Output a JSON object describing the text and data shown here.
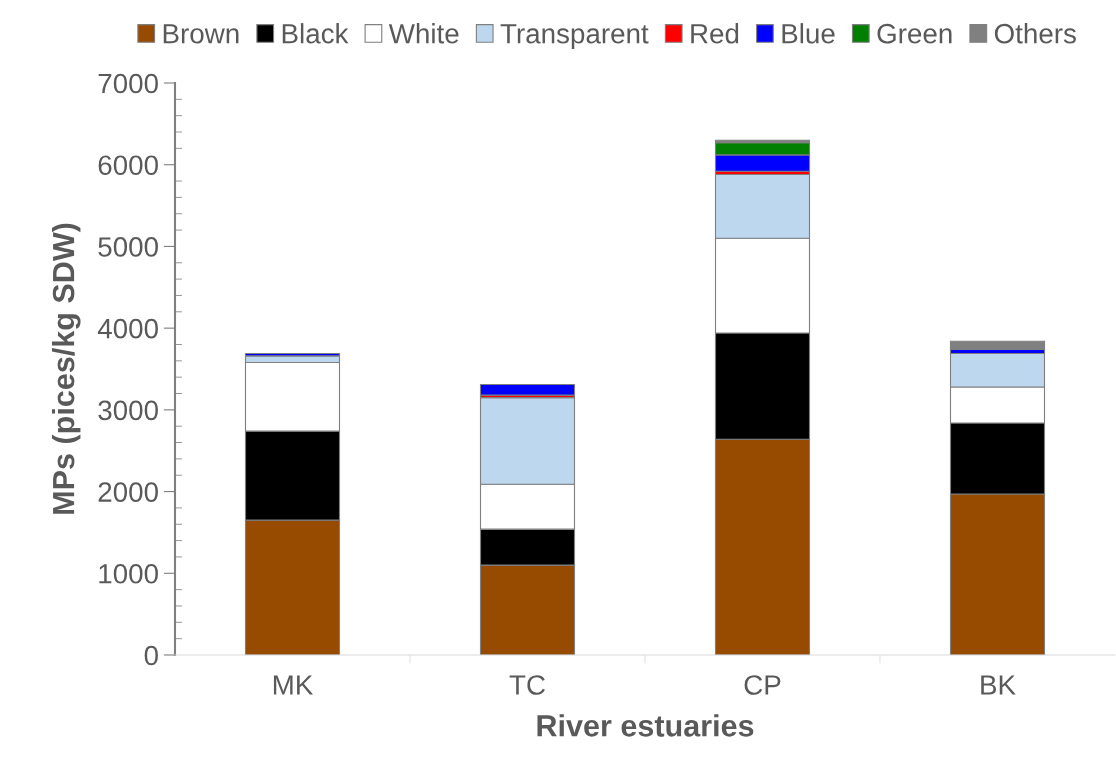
{
  "chart_data": {
    "type": "bar",
    "stacked": true,
    "xlabel": "River estuaries",
    "ylabel": "MPs (pices/kg SDW)",
    "categories": [
      "MK",
      "TC",
      "CP",
      "BK"
    ],
    "series": [
      {
        "name": "Brown",
        "color": "#974b00",
        "values": [
          1650,
          1100,
          2640,
          1970
        ]
      },
      {
        "name": "Black",
        "color": "#000000",
        "values": [
          1090,
          440,
          1300,
          870
        ]
      },
      {
        "name": "White",
        "color": "#ffffff",
        "values": [
          840,
          550,
          1160,
          440
        ]
      },
      {
        "name": "Transparent",
        "color": "#bdd7ee",
        "values": [
          80,
          1060,
          780,
          410
        ]
      },
      {
        "name": "Red",
        "color": "#ff0000",
        "values": [
          null,
          30,
          40,
          null
        ]
      },
      {
        "name": "Blue",
        "color": "#0000ff",
        "values": [
          30,
          130,
          200,
          50
        ]
      },
      {
        "name": "Green",
        "color": "#008000",
        "values": [
          null,
          null,
          150,
          null
        ]
      },
      {
        "name": "Others",
        "color": "#808080",
        "values": [
          null,
          null,
          30,
          100
        ]
      }
    ],
    "ylim": [
      0,
      7000
    ],
    "yticks": [
      0,
      1000,
      2000,
      3000,
      4000,
      5000,
      6000,
      7000
    ],
    "grid": false,
    "legend": "top"
  }
}
